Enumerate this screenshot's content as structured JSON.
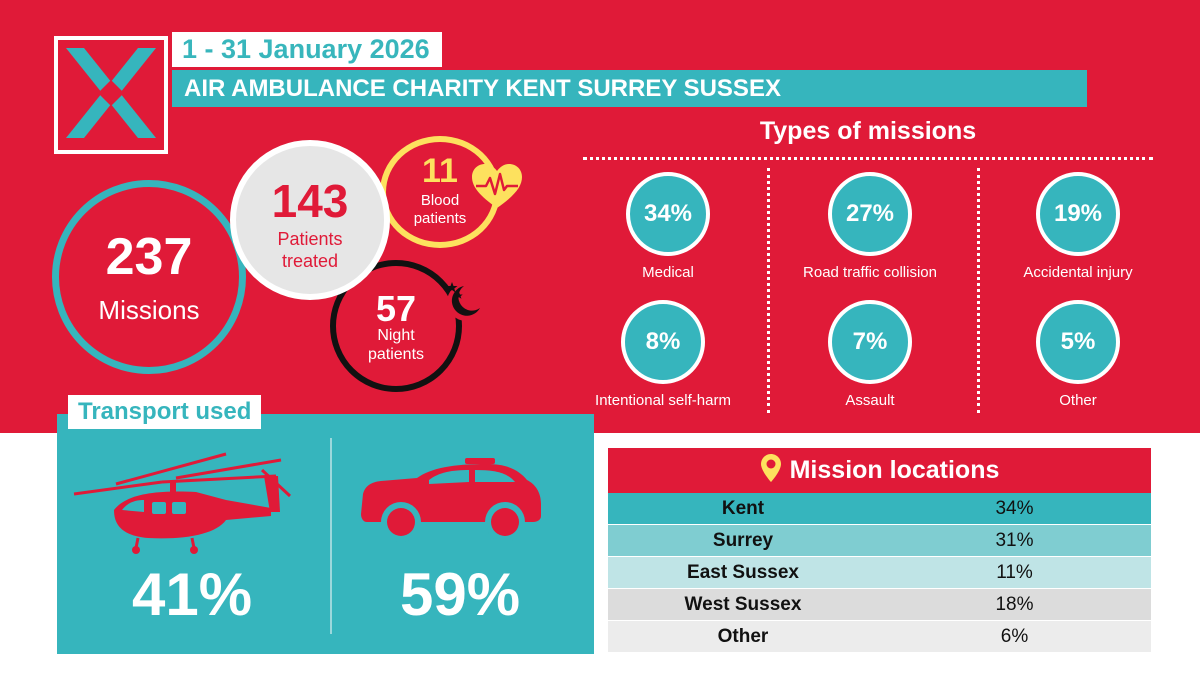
{
  "header": {
    "date_range": "1 - 31 January 2026",
    "title": "AIR AMBULANCE CHARITY KENT SURREY SUSSEX"
  },
  "stats": {
    "missions": {
      "value": "237",
      "label": "Missions"
    },
    "patients_treated": {
      "value": "143",
      "label_line1": "Patients",
      "label_line2": "treated"
    },
    "blood_patients": {
      "value": "11",
      "label_line1": "Blood",
      "label_line2": "patients"
    },
    "night_patients": {
      "value": "57",
      "label_line1": "Night",
      "label_line2": "patients"
    }
  },
  "types_of_missions": {
    "title": "Types of missions",
    "items": [
      {
        "percent": "34%",
        "label": "Medical"
      },
      {
        "percent": "27%",
        "label": "Road traffic collision"
      },
      {
        "percent": "19%",
        "label": "Accidental injury"
      },
      {
        "percent": "8%",
        "label": "Intentional self-harm"
      },
      {
        "percent": "7%",
        "label": "Assault"
      },
      {
        "percent": "5%",
        "label": "Other"
      }
    ]
  },
  "transport": {
    "title": "Transport used",
    "helicopter": {
      "icon": "helicopter-icon",
      "percent": "41%"
    },
    "car": {
      "icon": "car-icon",
      "percent": "59%"
    }
  },
  "mission_locations": {
    "title": "Mission locations",
    "rows": [
      {
        "name": "Kent",
        "percent": "34%",
        "color": "#36b5bd"
      },
      {
        "name": "Surrey",
        "percent": "31%",
        "color": "#7fcdd1"
      },
      {
        "name": "East Sussex",
        "percent": "11%",
        "color": "#bfe4e6"
      },
      {
        "name": "West Sussex",
        "percent": "18%",
        "color": "#dcdcdc"
      },
      {
        "name": "Other",
        "percent": "6%",
        "color": "#ececec"
      }
    ]
  },
  "colors": {
    "brand_red": "#e01a38",
    "brand_teal": "#36b5bd",
    "blood_yellow": "#fde15e"
  }
}
